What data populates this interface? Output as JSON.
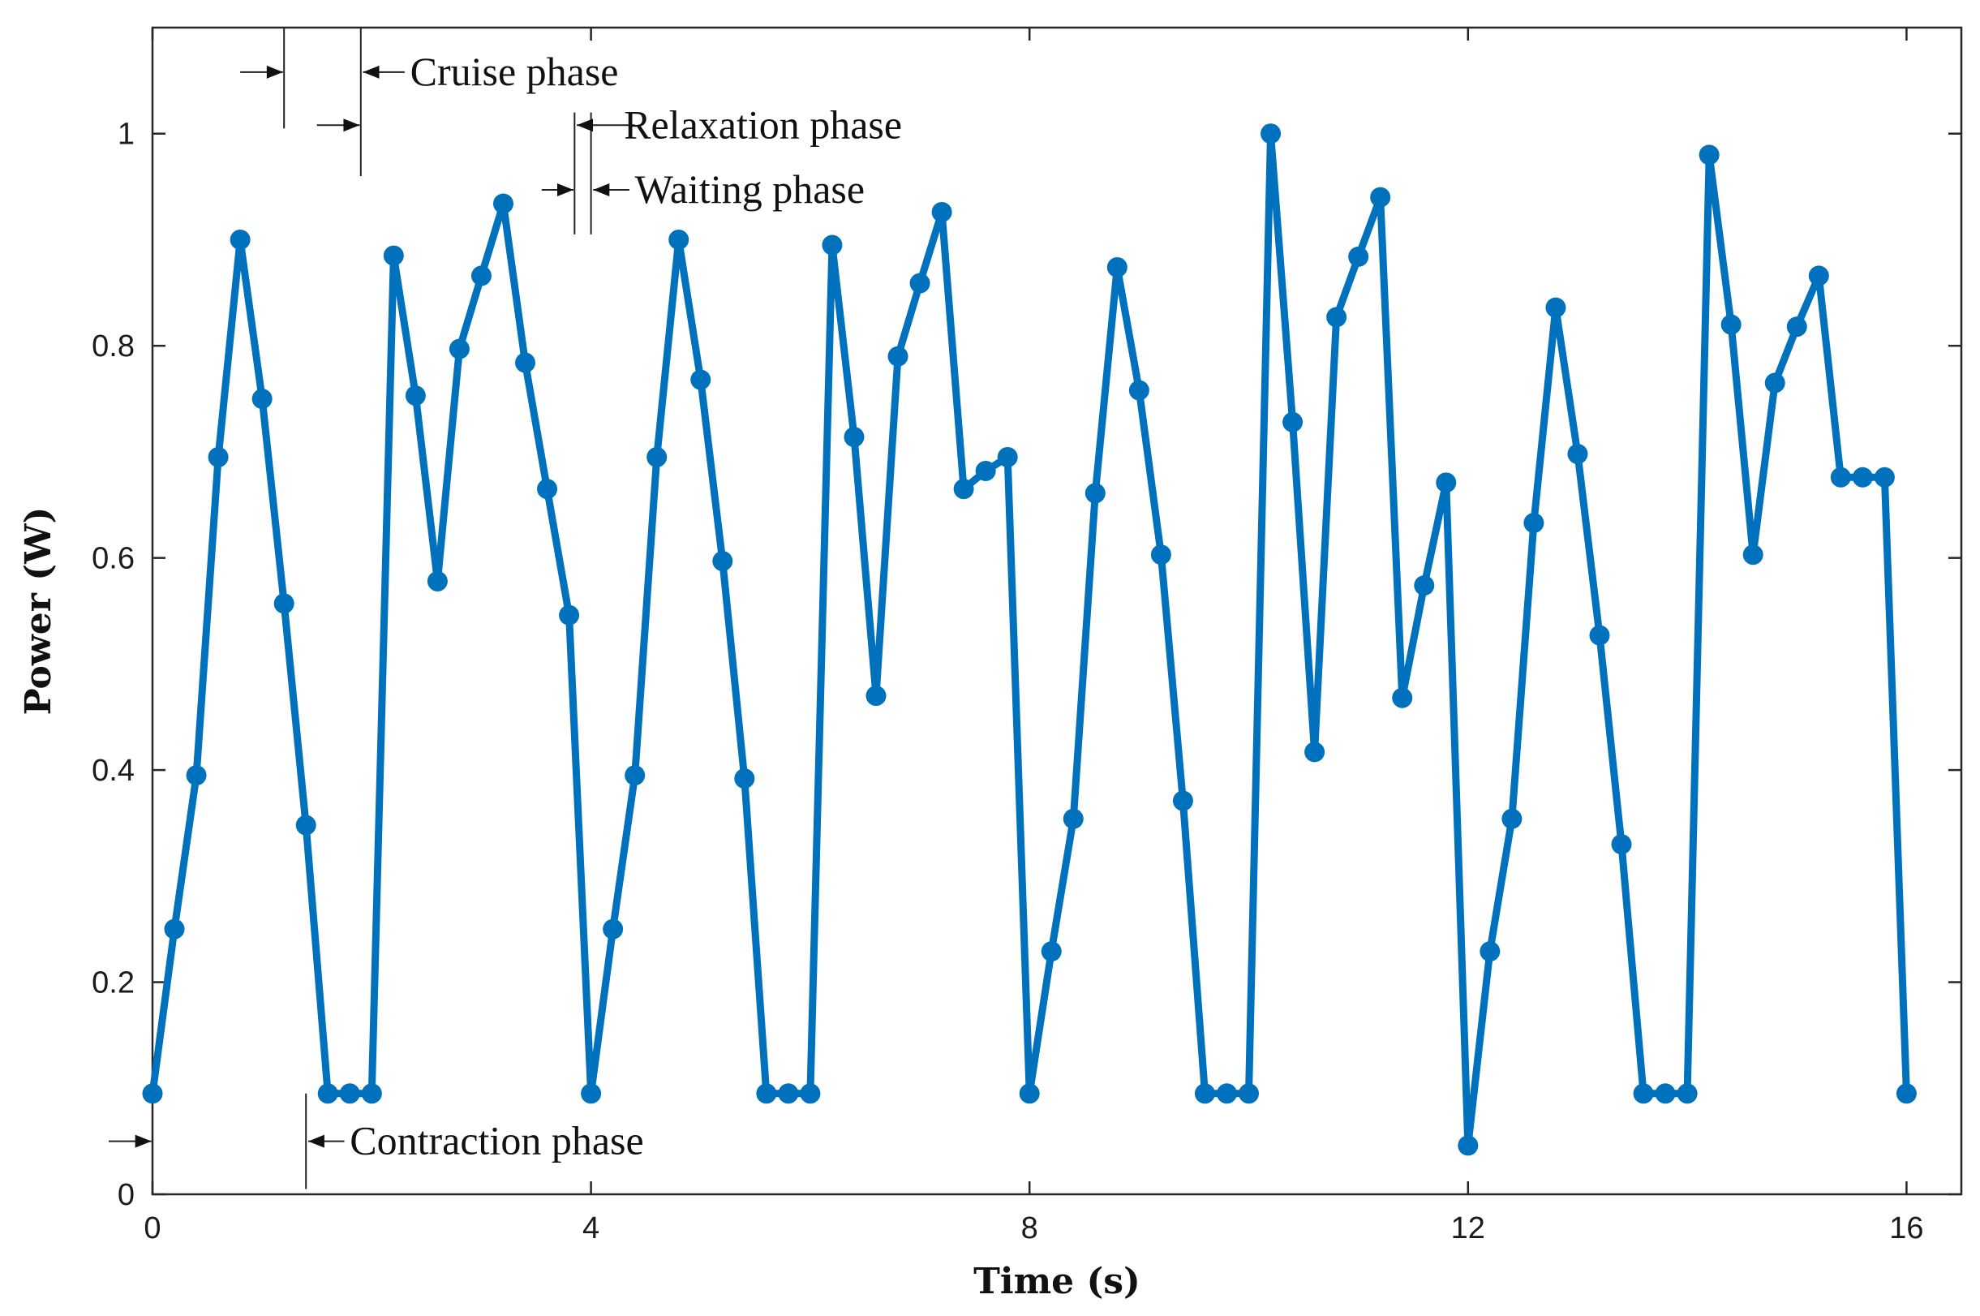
{
  "chart_data": {
    "type": "line",
    "title": "",
    "xlabel": "Time (s)",
    "ylabel": "Power (W)",
    "xlim": [
      0,
      16.5
    ],
    "ylim": [
      0,
      1.1
    ],
    "xticks": [
      0,
      4,
      8,
      12,
      16
    ],
    "yticks": [
      0,
      0.2,
      0.4,
      0.6,
      0.8,
      1
    ],
    "grid": false,
    "series": [
      {
        "name": "Power",
        "color": "#0072BD",
        "x": [
          0,
          0.2,
          0.4,
          0.6,
          0.8,
          1.0,
          1.2,
          1.4,
          1.6,
          1.8,
          2.0,
          2.2,
          2.4,
          2.6,
          2.8,
          3.0,
          3.2,
          3.4,
          3.6,
          3.8,
          4.0,
          4.2,
          4.4,
          4.6,
          4.8,
          5.0,
          5.2,
          5.4,
          5.6,
          5.8,
          6.0,
          6.2,
          6.4,
          6.6,
          6.8,
          7.0,
          7.2,
          7.4,
          7.6,
          7.8,
          8.0,
          8.2,
          8.4,
          8.6,
          8.8,
          9.0,
          9.2,
          9.4,
          9.6,
          9.8,
          10.0,
          10.2,
          10.4,
          10.6,
          10.8,
          11.0,
          11.2,
          11.4,
          11.6,
          11.8,
          12.0,
          12.2,
          12.4,
          12.6,
          12.8,
          13.0,
          13.2,
          13.4,
          13.6,
          13.8,
          14.0,
          14.2,
          14.4,
          14.6,
          14.8,
          15.0,
          15.2,
          15.4,
          15.6,
          15.8,
          16.0
        ],
        "y": [
          0.095,
          0.25,
          0.395,
          0.695,
          0.9,
          0.75,
          0.557,
          0.348,
          0.095,
          0.095,
          0.095,
          0.885,
          0.753,
          0.578,
          0.797,
          0.866,
          0.934,
          0.784,
          0.665,
          0.546,
          0.095,
          0.25,
          0.395,
          0.695,
          0.9,
          0.768,
          0.597,
          0.392,
          0.095,
          0.095,
          0.095,
          0.895,
          0.714,
          0.47,
          0.79,
          0.859,
          0.926,
          0.665,
          0.682,
          0.695,
          0.095,
          0.229,
          0.354,
          0.661,
          0.874,
          0.758,
          0.603,
          0.371,
          0.095,
          0.095,
          0.095,
          1.0,
          0.728,
          0.417,
          0.827,
          0.884,
          0.94,
          0.468,
          0.574,
          0.671,
          0.046,
          0.229,
          0.354,
          0.633,
          0.836,
          0.698,
          0.527,
          0.33,
          0.095,
          0.095,
          0.095,
          0.98,
          0.82,
          0.603,
          0.765,
          0.818,
          0.866,
          0.676,
          0.676,
          0.676,
          0.095
        ]
      }
    ],
    "annotations": [
      {
        "label": "Cruise phase",
        "text_x": 2.35,
        "text_y": 1.058,
        "arrows": [
          [
            1.2,
            1.058,
            1.25,
            1.058,
            "left"
          ],
          [
            2.0,
            1.058,
            2.2,
            1.058,
            "right"
          ],
          [
            1.8,
            1.01,
            1.98,
            1.01,
            "left"
          ]
        ],
        "lines": [
          [
            1.2,
            1.005,
            1.2,
            1.1
          ],
          [
            1.9,
            0.96,
            1.9,
            1.1
          ]
        ]
      },
      {
        "label": "Relaxation phase",
        "text_x": 4.3,
        "text_y": 1.008
      },
      {
        "label": "Waiting phase",
        "text_x": 4.4,
        "text_y": 0.947
      },
      {
        "label": "Contraction phase",
        "text_x": 1.8,
        "text_y": 0.05
      }
    ]
  }
}
